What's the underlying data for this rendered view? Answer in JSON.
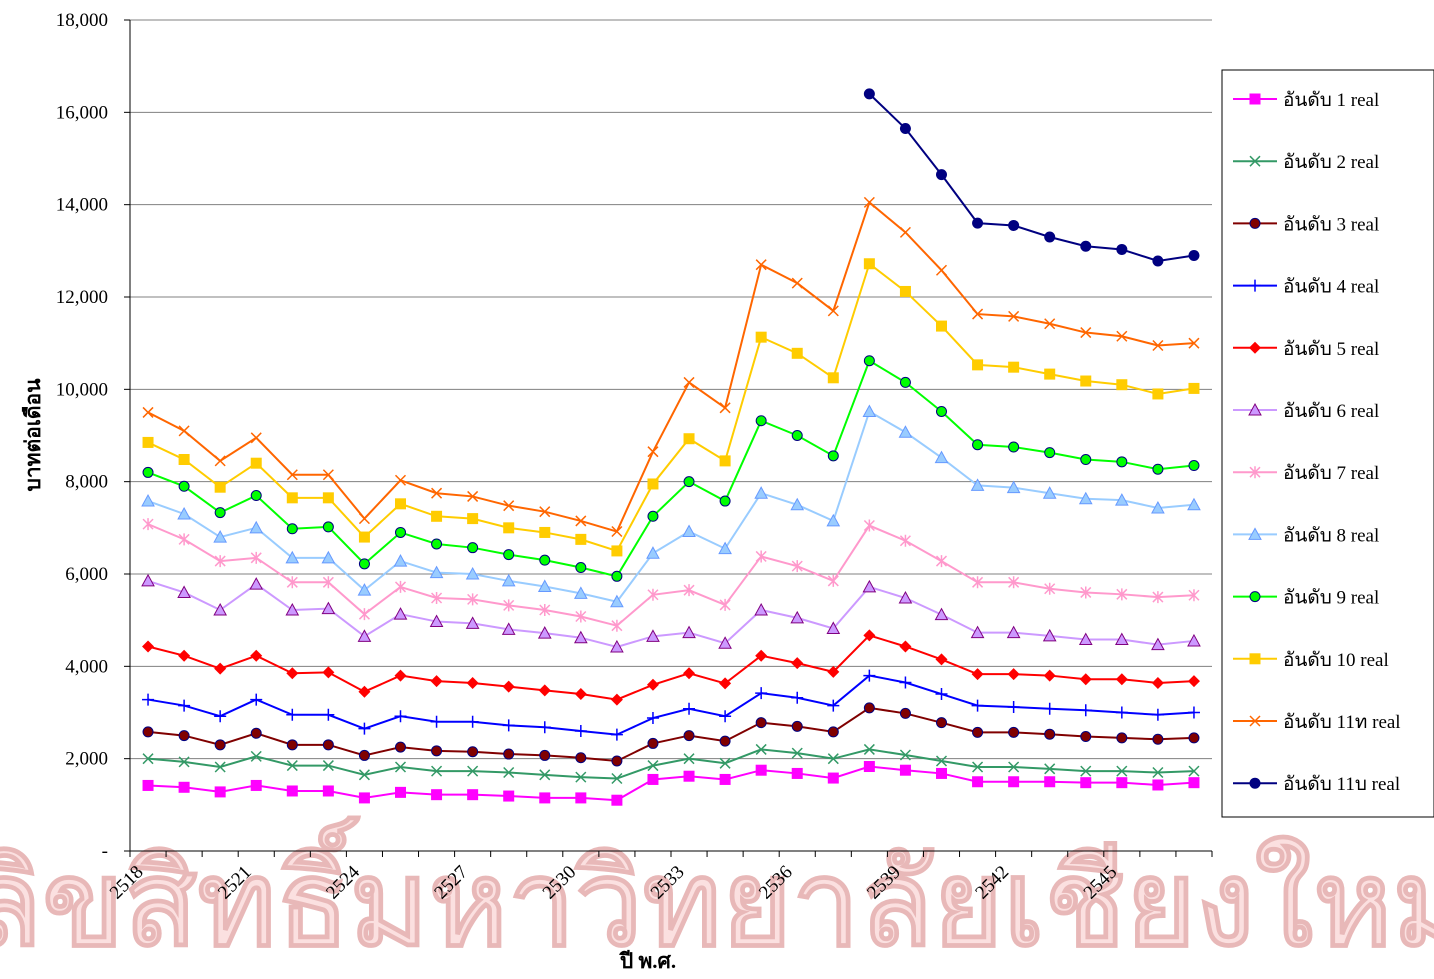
{
  "chart_data": {
    "type": "line",
    "xlabel": "ปี พ.ศ.",
    "ylabel": "บาทต่อเดือน",
    "watermark": "ลิขสิทธิ์มหาวิทยาลัยเชียงใหม่",
    "categories": [
      "2518",
      null,
      null,
      "2521",
      null,
      null,
      "2524",
      null,
      null,
      "2527",
      null,
      null,
      "2530",
      null,
      null,
      "2533",
      null,
      null,
      "2536",
      null,
      null,
      "2539",
      null,
      null,
      "2542",
      null,
      null,
      "2545",
      null,
      null
    ],
    "ylim": [
      0,
      18000
    ],
    "yticks": [
      {
        "value": 0,
        "label": "-"
      },
      {
        "value": 2000,
        "label": "2,000"
      },
      {
        "value": 4000,
        "label": "4,000"
      },
      {
        "value": 6000,
        "label": "6,000"
      },
      {
        "value": 8000,
        "label": "8,000"
      },
      {
        "value": 10000,
        "label": "10,000"
      },
      {
        "value": 12000,
        "label": "12,000"
      },
      {
        "value": 14000,
        "label": "14,000"
      },
      {
        "value": 16000,
        "label": "16,000"
      },
      {
        "value": 18000,
        "label": "18,000"
      }
    ],
    "grid": true,
    "legend": "right",
    "series": [
      {
        "name": "อันดับ 1 real",
        "color": "#ff00ff",
        "marker": "square",
        "values": [
          1420,
          1380,
          1280,
          1420,
          1300,
          1300,
          1150,
          1270,
          1220,
          1220,
          1190,
          1150,
          1150,
          1100,
          1550,
          1620,
          1550,
          1750,
          1680,
          1580,
          1830,
          1750,
          1680,
          1500,
          1500,
          1500,
          1480,
          1480,
          1430,
          1480
        ]
      },
      {
        "name": "อันดับ 2 real",
        "color": "#339966",
        "marker": "x",
        "values": [
          2000,
          1930,
          1820,
          2050,
          1850,
          1850,
          1650,
          1820,
          1730,
          1730,
          1700,
          1650,
          1600,
          1570,
          1850,
          2000,
          1900,
          2200,
          2120,
          2000,
          2200,
          2080,
          1950,
          1820,
          1820,
          1780,
          1730,
          1730,
          1700,
          1730
        ]
      },
      {
        "name": "อันดับ 3 real",
        "color": "#800000",
        "marker": "circle",
        "values": [
          2580,
          2500,
          2300,
          2550,
          2300,
          2300,
          2070,
          2250,
          2170,
          2150,
          2100,
          2070,
          2020,
          1950,
          2330,
          2500,
          2380,
          2780,
          2700,
          2580,
          3100,
          2980,
          2780,
          2570,
          2570,
          2530,
          2480,
          2450,
          2420,
          2450
        ]
      },
      {
        "name": "อันดับ 4 real",
        "color": "#0000ff",
        "marker": "plus",
        "values": [
          3280,
          3150,
          2920,
          3280,
          2950,
          2950,
          2650,
          2920,
          2800,
          2800,
          2720,
          2680,
          2600,
          2520,
          2880,
          3080,
          2920,
          3420,
          3320,
          3150,
          3800,
          3650,
          3400,
          3150,
          3120,
          3080,
          3050,
          3000,
          2950,
          3000
        ]
      },
      {
        "name": "อันดับ 5 real",
        "color": "#ff0000",
        "marker": "diamond",
        "values": [
          4430,
          4230,
          3950,
          4230,
          3850,
          3870,
          3450,
          3800,
          3680,
          3640,
          3560,
          3480,
          3400,
          3280,
          3600,
          3850,
          3630,
          4230,
          4070,
          3880,
          4670,
          4430,
          4150,
          3830,
          3830,
          3800,
          3720,
          3720,
          3640,
          3680
        ]
      },
      {
        "name": "อันดับ 6 real",
        "color": "#cc99ff",
        "marker": "triangle",
        "values": [
          5850,
          5600,
          5220,
          5780,
          5220,
          5250,
          4650,
          5130,
          4970,
          4930,
          4800,
          4720,
          4620,
          4420,
          4650,
          4730,
          4500,
          5220,
          5050,
          4820,
          5720,
          5480,
          5120,
          4730,
          4730,
          4660,
          4580,
          4580,
          4470,
          4550
        ]
      },
      {
        "name": "อันดับ 7 real",
        "color": "#ff99cc",
        "marker": "asterisk",
        "values": [
          7080,
          6750,
          6280,
          6350,
          5820,
          5820,
          5130,
          5720,
          5480,
          5450,
          5320,
          5220,
          5080,
          4880,
          5550,
          5650,
          5330,
          6380,
          6170,
          5850,
          7050,
          6720,
          6280,
          5820,
          5820,
          5680,
          5600,
          5560,
          5500,
          5540
        ]
      },
      {
        "name": "อันดับ 8 real",
        "color": "#99ccff",
        "marker": "triangle",
        "values": [
          7580,
          7300,
          6800,
          7000,
          6350,
          6350,
          5650,
          6280,
          6030,
          6000,
          5850,
          5730,
          5580,
          5400,
          6450,
          6920,
          6550,
          7750,
          7500,
          7150,
          9520,
          9070,
          8520,
          7920,
          7870,
          7750,
          7630,
          7600,
          7430,
          7500
        ]
      },
      {
        "name": "อันดับ 9 real",
        "color": "#00ff00",
        "marker": "circle",
        "values": [
          8200,
          7900,
          7330,
          7700,
          6980,
          7020,
          6220,
          6900,
          6650,
          6570,
          6420,
          6300,
          6140,
          5950,
          7250,
          8000,
          7580,
          9320,
          9000,
          8560,
          10620,
          10150,
          9520,
          8800,
          8750,
          8630,
          8480,
          8430,
          8270,
          8350
        ]
      },
      {
        "name": "อันดับ 10 real",
        "color": "#ffcc00",
        "marker": "square",
        "values": [
          8850,
          8480,
          7880,
          8400,
          7650,
          7650,
          6800,
          7520,
          7250,
          7200,
          7000,
          6900,
          6750,
          6500,
          7950,
          8930,
          8450,
          11130,
          10780,
          10250,
          12720,
          12120,
          11370,
          10530,
          10480,
          10330,
          10180,
          10100,
          9900,
          10020
        ]
      },
      {
        "name": "อันดับ 11ท real",
        "color": "#ff6600",
        "marker": "x",
        "values": [
          9500,
          9100,
          8450,
          8950,
          8150,
          8150,
          7200,
          8030,
          7750,
          7680,
          7480,
          7350,
          7150,
          6920,
          8650,
          10150,
          9600,
          12700,
          12300,
          11700,
          14050,
          13400,
          12580,
          11630,
          11580,
          11420,
          11230,
          11150,
          10950,
          11000
        ]
      },
      {
        "name": "อันดับ 11บ real",
        "color": "#000080",
        "marker": "circle",
        "values": [
          null,
          null,
          null,
          null,
          null,
          null,
          null,
          null,
          null,
          null,
          null,
          null,
          null,
          null,
          null,
          null,
          null,
          null,
          null,
          null,
          16400,
          15650,
          14650,
          13600,
          13550,
          13300,
          13100,
          13030,
          12780,
          12900
        ]
      }
    ]
  }
}
